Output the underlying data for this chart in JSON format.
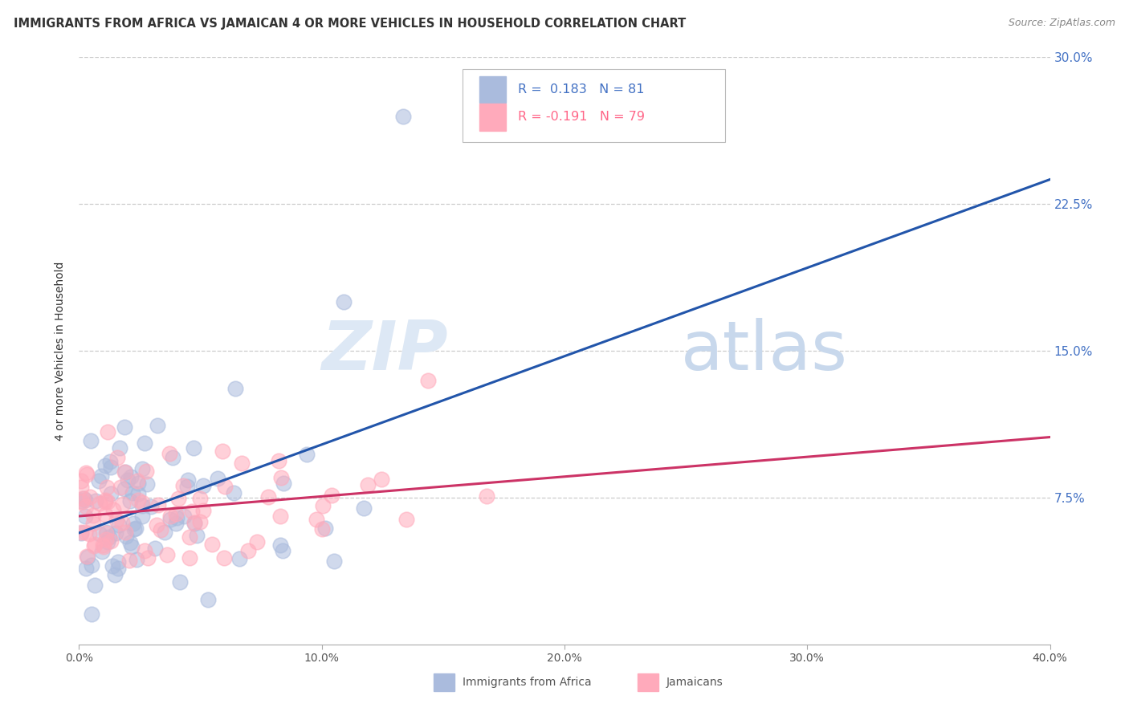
{
  "title": "IMMIGRANTS FROM AFRICA VS JAMAICAN 4 OR MORE VEHICLES IN HOUSEHOLD CORRELATION CHART",
  "source": "Source: ZipAtlas.com",
  "ylabel": "4 or more Vehicles in Household",
  "watermark_zip": "ZIP",
  "watermark_atlas": "atlas",
  "xlim": [
    0.0,
    0.4
  ],
  "ylim": [
    0.0,
    0.3
  ],
  "xticks": [
    0.0,
    0.1,
    0.2,
    0.3,
    0.4
  ],
  "xticklabels": [
    "0.0%",
    "10.0%",
    "20.0%",
    "30.0%",
    "40.0%"
  ],
  "yticks_right": [
    0.075,
    0.15,
    0.225,
    0.3
  ],
  "yticklabels_right": [
    "7.5%",
    "15.0%",
    "22.5%",
    "30.0%"
  ],
  "legend_label_africa": "Immigrants from Africa",
  "legend_label_jamaican": "Jamaicans",
  "r_africa": 0.183,
  "n_africa": 81,
  "r_jamaican": -0.191,
  "n_jamaican": 79,
  "blue_scatter_color": "#aabbdd",
  "pink_scatter_color": "#ffaabb",
  "blue_line_color": "#2255aa",
  "pink_line_color": "#cc3366",
  "blue_legend_color": "#4472C4",
  "pink_legend_color": "#FF6688",
  "right_tick_color": "#4472C4",
  "background_color": "#ffffff",
  "grid_color": "#cccccc",
  "grid_linestyle": "--",
  "title_color": "#333333",
  "source_color": "#888888",
  "ylabel_color": "#333333"
}
